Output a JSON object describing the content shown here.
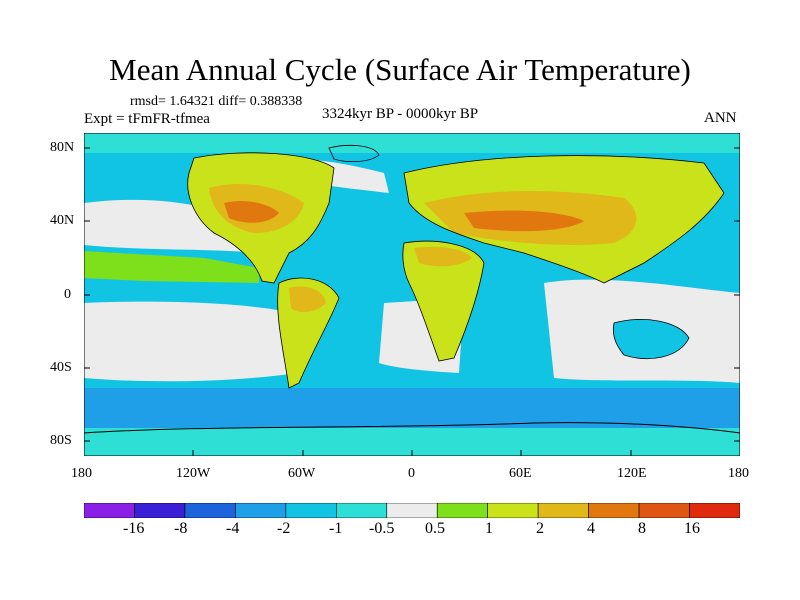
{
  "title": "Mean Annual Cycle (Surface Air Temperature)",
  "stats": "rmsd= 1.64321 diff= 0.388338",
  "experiment": "Expt = tFmFR-tfmea",
  "period": "3324kyr BP - 0000kyr BP",
  "season": "ANN",
  "lat_labels": [
    "80N",
    "40N",
    "0",
    "40S",
    "80S"
  ],
  "lon_labels": [
    "180",
    "120W",
    "60W",
    "0",
    "60E",
    "120E",
    "180"
  ],
  "colorbar": {
    "labels": [
      "-16",
      "-8",
      "-4",
      "-2",
      "-1",
      "-0.5",
      "0.5",
      "1",
      "2",
      "4",
      "8",
      "16"
    ],
    "colors": [
      "#8a1fe6",
      "#3a1fd6",
      "#1d63dc",
      "#1e9fe8",
      "#12c4e4",
      "#2edfd6",
      "#ececec",
      "#7ee01a",
      "#c9e21a",
      "#e0b819",
      "#e0780f",
      "#e05514",
      "#e02a0d"
    ]
  },
  "palette": {
    "zero": "#ececec",
    "light_cool": "#2edfd6",
    "cool": "#12c4e4",
    "cold": "#1e9fe8",
    "warm_light": "#7ee01a",
    "warm": "#c9e21a",
    "hot": "#e0b819",
    "hotter": "#e0780f"
  }
}
